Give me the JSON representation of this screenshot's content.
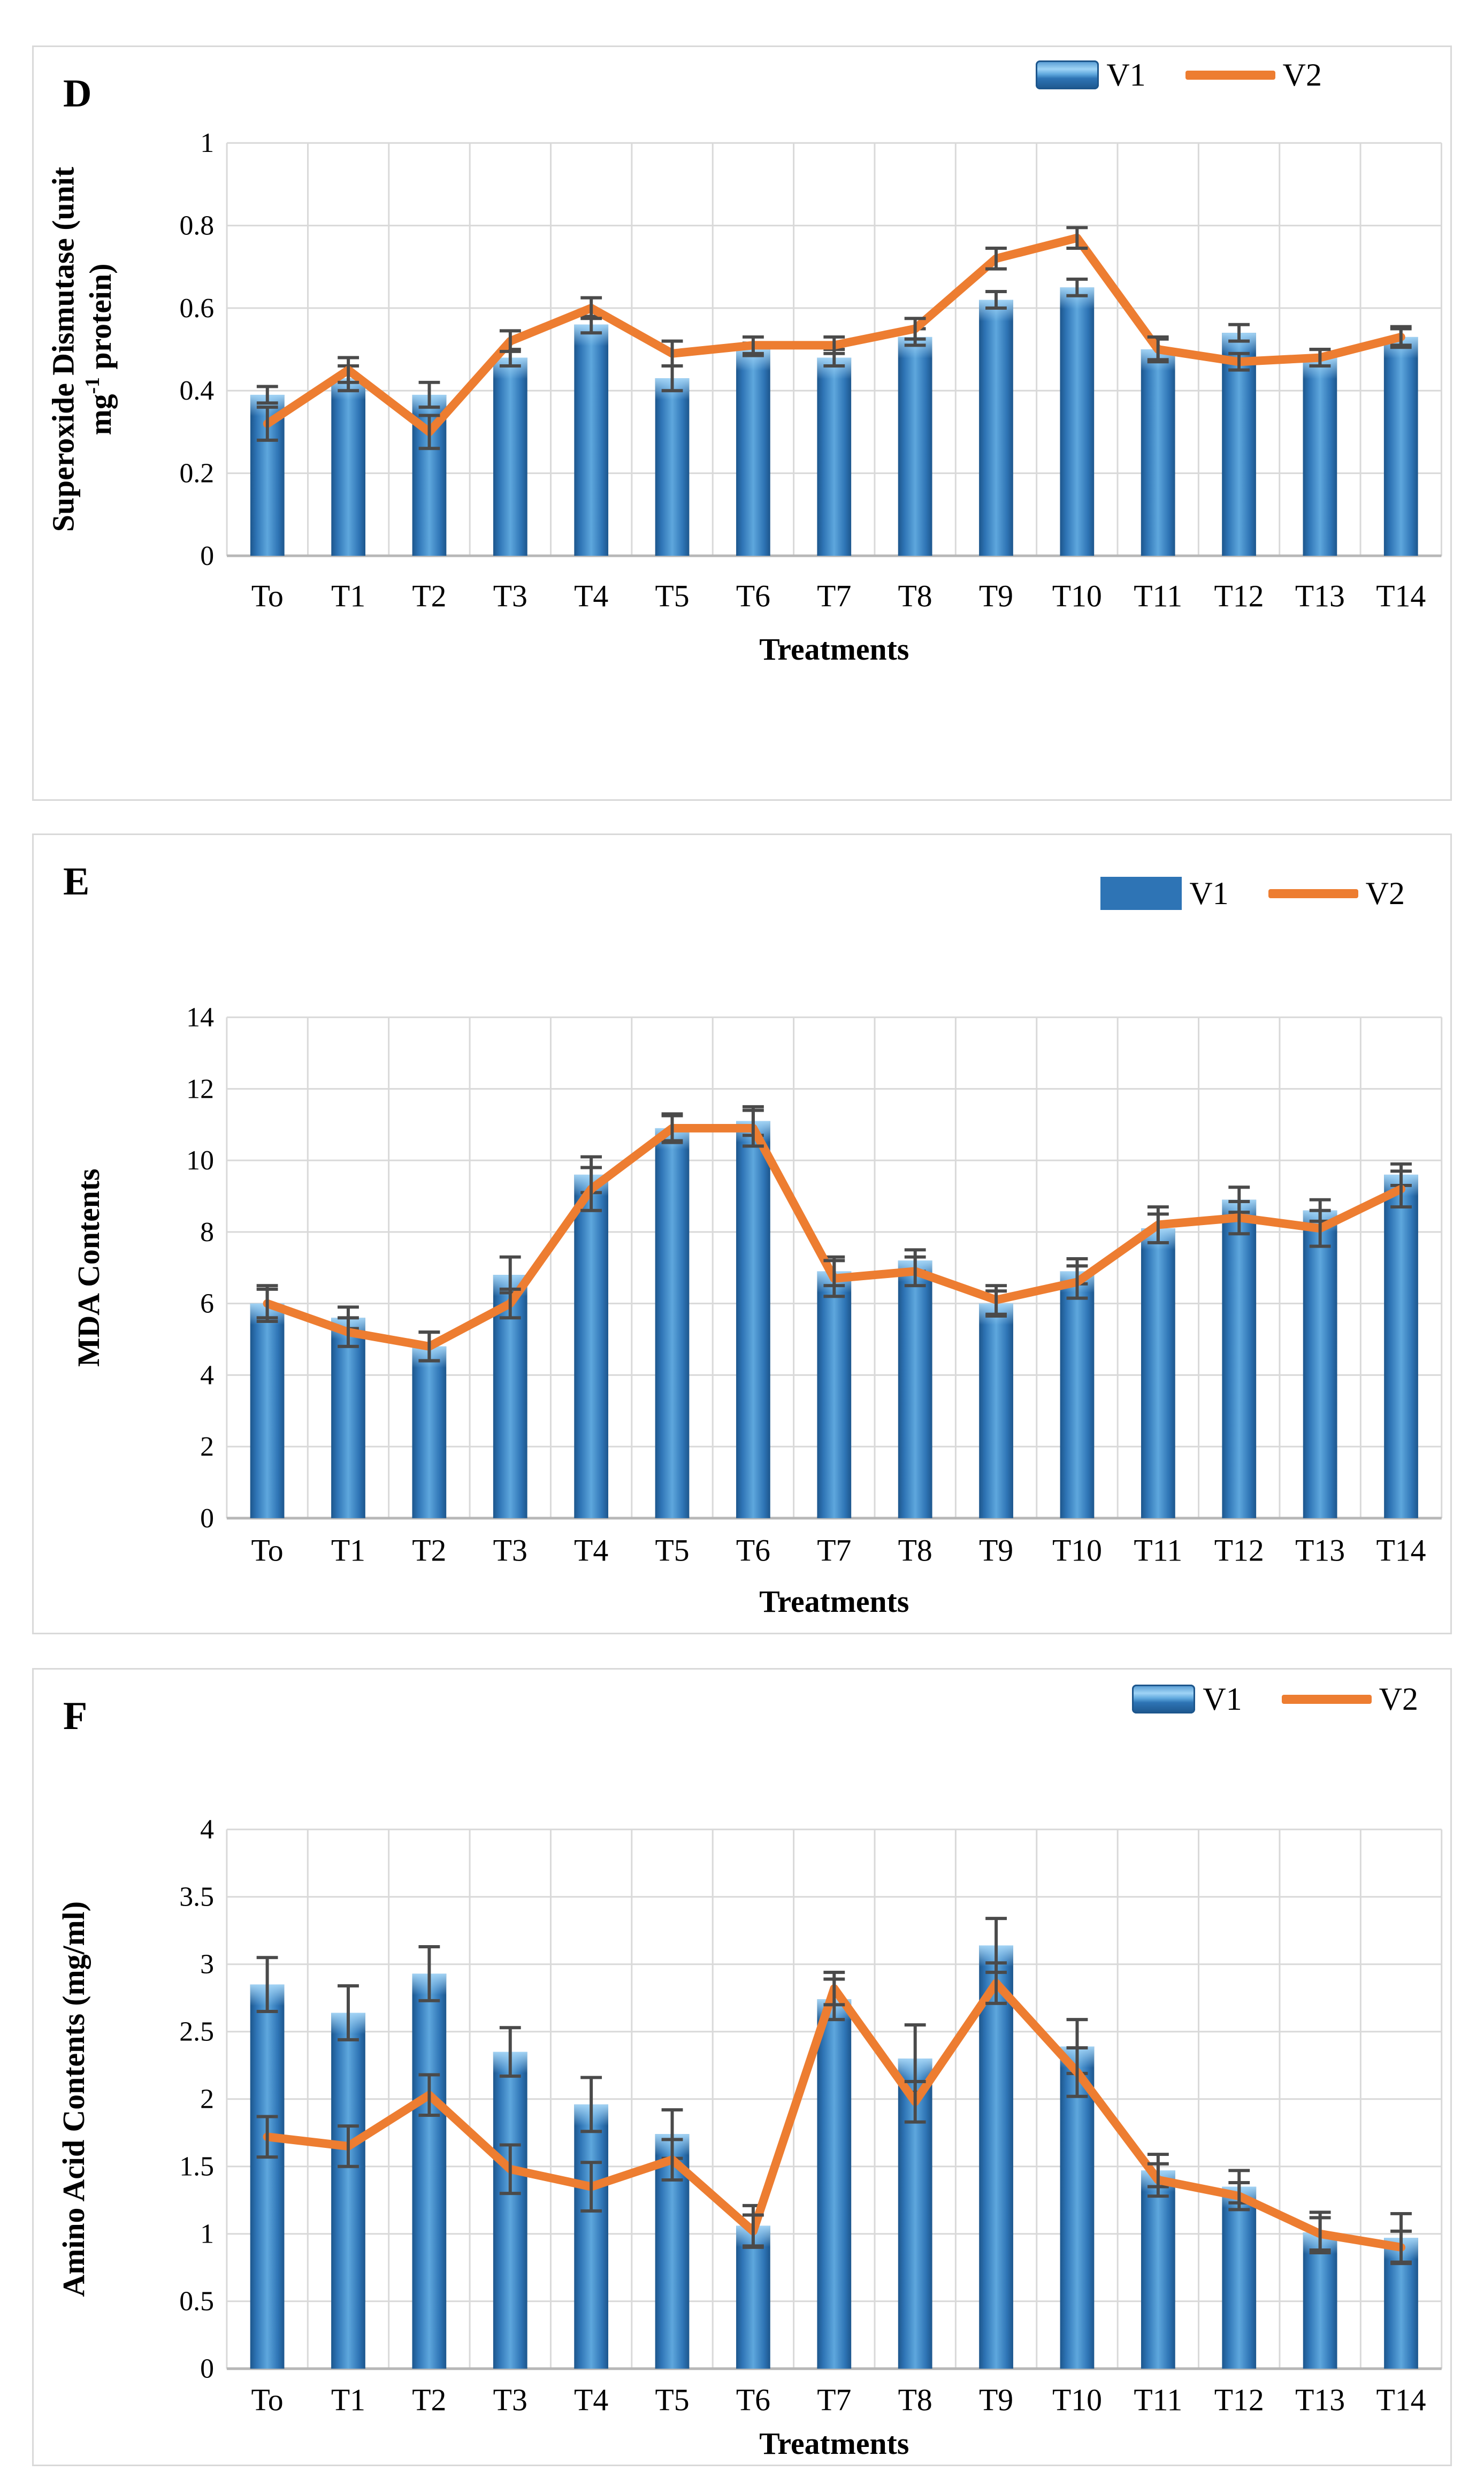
{
  "page": {
    "background": "#ffffff"
  },
  "colors": {
    "bar": "#2e74b5",
    "bar_light": "#9fd2f3",
    "bar_dark": "#1d568c",
    "line": "#ed7d31",
    "grid": "#d9d9d9",
    "axis": "#b7b7b7",
    "error": "#4a4a4a",
    "text": "#000000",
    "panel_border": "#d9d9d9"
  },
  "legend": {
    "v1": "V1",
    "v2": "V2"
  },
  "x_axis_title": "Treatments",
  "categories": [
    "To",
    "T1",
    "T2",
    "T3",
    "T4",
    "T5",
    "T6",
    "T7",
    "T8",
    "T9",
    "T10",
    "T11",
    "T12",
    "T13",
    "T14"
  ],
  "chart_data": [
    {
      "type": "bar",
      "panel_label": "D",
      "title": "",
      "ylabel": "Superoxide Dismutase (unit mg^{-1} protein)",
      "ylabel_lines": [
        "Superoxide Dismutase (unit",
        "mg^{-1} protein)"
      ],
      "xlabel": "Treatments",
      "ylim": [
        0,
        1
      ],
      "ystep": 0.2,
      "grid": "on",
      "legend_position": "top-right",
      "categories": [
        "To",
        "T1",
        "T2",
        "T3",
        "T4",
        "T5",
        "T6",
        "T7",
        "T8",
        "T9",
        "T10",
        "T11",
        "T12",
        "T13",
        "T14"
      ],
      "series": [
        {
          "name": "V1",
          "type": "bar",
          "values": [
            0.39,
            0.43,
            0.39,
            0.48,
            0.56,
            0.43,
            0.5,
            0.48,
            0.53,
            0.62,
            0.65,
            0.5,
            0.54,
            0.48,
            0.53
          ],
          "errors": [
            0.02,
            0.03,
            0.03,
            0.02,
            0.02,
            0.03,
            0.015,
            0.02,
            0.02,
            0.02,
            0.02,
            0.025,
            0.02,
            0.02,
            0.02
          ]
        },
        {
          "name": "V2",
          "type": "line",
          "values": [
            0.32,
            0.45,
            0.3,
            0.52,
            0.6,
            0.49,
            0.51,
            0.51,
            0.55,
            0.72,
            0.77,
            0.5,
            0.47,
            0.48,
            0.53
          ],
          "errors": [
            0.04,
            0.03,
            0.04,
            0.025,
            0.025,
            0.03,
            0.02,
            0.02,
            0.025,
            0.025,
            0.025,
            0.03,
            0.02,
            0.02,
            0.025
          ]
        }
      ]
    },
    {
      "type": "bar",
      "panel_label": "E",
      "title": "",
      "ylabel": "MDA Contents",
      "ylabel_lines": [
        "MDA Contents"
      ],
      "xlabel": "Treatments",
      "ylim": [
        0,
        14
      ],
      "ystep": 2,
      "grid": "on",
      "legend_position": "top-right",
      "categories": [
        "To",
        "T1",
        "T2",
        "T3",
        "T4",
        "T5",
        "T6",
        "T7",
        "T8",
        "T9",
        "T10",
        "T11",
        "T12",
        "T13",
        "T14"
      ],
      "series": [
        {
          "name": "V1",
          "type": "bar",
          "values": [
            6.0,
            5.6,
            4.8,
            6.8,
            9.6,
            10.9,
            11.1,
            6.9,
            7.2,
            6.0,
            6.9,
            8.1,
            8.9,
            8.6,
            9.6
          ],
          "errors": [
            0.4,
            0.3,
            0.4,
            0.5,
            0.5,
            0.35,
            0.4,
            0.4,
            0.3,
            0.35,
            0.35,
            0.4,
            0.35,
            0.3,
            0.3
          ]
        },
        {
          "name": "V2",
          "type": "line",
          "values": [
            6.0,
            5.2,
            4.8,
            6.0,
            9.2,
            10.9,
            10.9,
            6.7,
            6.9,
            6.1,
            6.6,
            8.2,
            8.4,
            8.1,
            9.2
          ],
          "errors": [
            0.5,
            0.4,
            0.4,
            0.4,
            0.6,
            0.4,
            0.5,
            0.5,
            0.4,
            0.4,
            0.45,
            0.5,
            0.45,
            0.5,
            0.5
          ]
        }
      ]
    },
    {
      "type": "bar",
      "panel_label": "F",
      "title": "",
      "ylabel": "Amino Acid Contents (mg/ml)",
      "ylabel_lines": [
        "Amino Acid Contents (mg/ml)"
      ],
      "xlabel": "Treatments",
      "ylim": [
        0,
        4
      ],
      "ystep": 0.5,
      "grid": "on",
      "legend_position": "top-right",
      "categories": [
        "To",
        "T1",
        "T2",
        "T3",
        "T4",
        "T5",
        "T6",
        "T7",
        "T8",
        "T9",
        "T10",
        "T11",
        "T12",
        "T13",
        "T14"
      ],
      "series": [
        {
          "name": "V1",
          "type": "bar",
          "values": [
            2.85,
            2.64,
            2.93,
            2.35,
            1.96,
            1.74,
            1.06,
            2.74,
            2.3,
            3.14,
            2.39,
            1.47,
            1.35,
            1.01,
            0.97
          ],
          "errors": [
            0.2,
            0.2,
            0.2,
            0.18,
            0.2,
            0.18,
            0.15,
            0.15,
            0.25,
            0.2,
            0.2,
            0.12,
            0.12,
            0.15,
            0.18
          ]
        },
        {
          "name": "V2",
          "type": "line",
          "values": [
            1.72,
            1.65,
            2.03,
            1.48,
            1.35,
            1.55,
            1.02,
            2.82,
            1.98,
            2.86,
            2.2,
            1.4,
            1.28,
            1.0,
            0.9
          ],
          "errors": [
            0.15,
            0.15,
            0.15,
            0.18,
            0.18,
            0.15,
            0.12,
            0.12,
            0.15,
            0.15,
            0.18,
            0.12,
            0.1,
            0.12,
            0.12
          ]
        }
      ]
    }
  ]
}
